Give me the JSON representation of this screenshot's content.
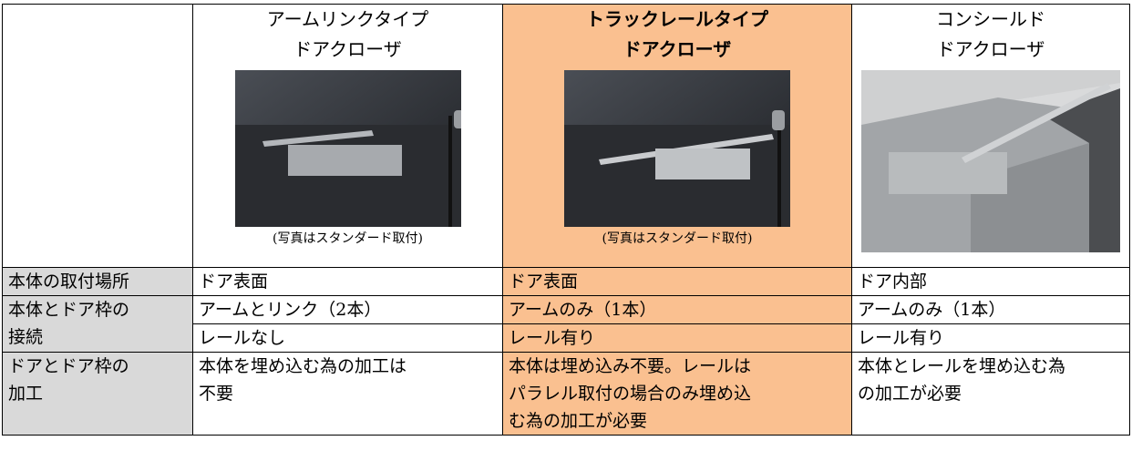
{
  "headers": [
    {
      "title": [
        "アームリンクタイプ",
        "ドアクローザ"
      ],
      "caption": "(写真はスタンダード取付)"
    },
    {
      "title": [
        "トラックレールタイプ",
        "ドアクローザ"
      ],
      "caption": "(写真はスタンダード取付)"
    },
    {
      "title": [
        "コンシールド",
        "ドアクローザ"
      ]
    }
  ],
  "rows": [
    {
      "label": [
        "本体の取付場所"
      ],
      "cells": [
        "ドア表面",
        "ドア表面",
        "ドア内部"
      ]
    },
    {
      "label": [
        "本体とドア枠の",
        "接続"
      ],
      "cells": [
        "アームとリンク（2本）",
        "アームのみ（1本）",
        "アームのみ（1本）"
      ]
    },
    {
      "cells": [
        "レールなし",
        "レール有り",
        "レール有り"
      ]
    },
    {
      "label": [
        "ドアとドア枠の",
        "加工"
      ],
      "cells": [
        [
          "本体を埋め込む為の加工は",
          "不要"
        ],
        [
          "本体は埋め込み不要。レールは",
          "パラレル取付の場合のみ埋め込",
          "む為の加工が必要"
        ],
        [
          "本体とレールを埋め込む為",
          "の加工が必要"
        ]
      ]
    }
  ]
}
